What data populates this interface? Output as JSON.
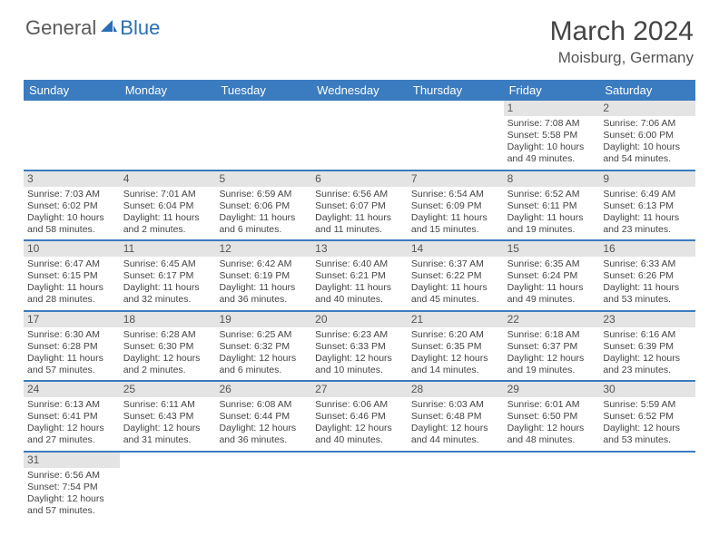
{
  "logo": {
    "general": "General",
    "blue": "Blue"
  },
  "title": "March 2024",
  "location": "Moisburg, Germany",
  "colors": {
    "header_bg": "#3b7bbf",
    "header_text": "#ffffff",
    "daynum_bg": "#e4e4e4",
    "row_border": "#3b7bbf",
    "body_text": "#444444",
    "logo_blue": "#2a6fb5",
    "logo_gray": "#5a5a5a"
  },
  "weekdays": [
    "Sunday",
    "Monday",
    "Tuesday",
    "Wednesday",
    "Thursday",
    "Friday",
    "Saturday"
  ],
  "rows": [
    [
      null,
      null,
      null,
      null,
      null,
      {
        "n": "1",
        "sr": "Sunrise: 7:08 AM",
        "ss": "Sunset: 5:58 PM",
        "dl1": "Daylight: 10 hours",
        "dl2": "and 49 minutes."
      },
      {
        "n": "2",
        "sr": "Sunrise: 7:06 AM",
        "ss": "Sunset: 6:00 PM",
        "dl1": "Daylight: 10 hours",
        "dl2": "and 54 minutes."
      }
    ],
    [
      {
        "n": "3",
        "sr": "Sunrise: 7:03 AM",
        "ss": "Sunset: 6:02 PM",
        "dl1": "Daylight: 10 hours",
        "dl2": "and 58 minutes."
      },
      {
        "n": "4",
        "sr": "Sunrise: 7:01 AM",
        "ss": "Sunset: 6:04 PM",
        "dl1": "Daylight: 11 hours",
        "dl2": "and 2 minutes."
      },
      {
        "n": "5",
        "sr": "Sunrise: 6:59 AM",
        "ss": "Sunset: 6:06 PM",
        "dl1": "Daylight: 11 hours",
        "dl2": "and 6 minutes."
      },
      {
        "n": "6",
        "sr": "Sunrise: 6:56 AM",
        "ss": "Sunset: 6:07 PM",
        "dl1": "Daylight: 11 hours",
        "dl2": "and 11 minutes."
      },
      {
        "n": "7",
        "sr": "Sunrise: 6:54 AM",
        "ss": "Sunset: 6:09 PM",
        "dl1": "Daylight: 11 hours",
        "dl2": "and 15 minutes."
      },
      {
        "n": "8",
        "sr": "Sunrise: 6:52 AM",
        "ss": "Sunset: 6:11 PM",
        "dl1": "Daylight: 11 hours",
        "dl2": "and 19 minutes."
      },
      {
        "n": "9",
        "sr": "Sunrise: 6:49 AM",
        "ss": "Sunset: 6:13 PM",
        "dl1": "Daylight: 11 hours",
        "dl2": "and 23 minutes."
      }
    ],
    [
      {
        "n": "10",
        "sr": "Sunrise: 6:47 AM",
        "ss": "Sunset: 6:15 PM",
        "dl1": "Daylight: 11 hours",
        "dl2": "and 28 minutes."
      },
      {
        "n": "11",
        "sr": "Sunrise: 6:45 AM",
        "ss": "Sunset: 6:17 PM",
        "dl1": "Daylight: 11 hours",
        "dl2": "and 32 minutes."
      },
      {
        "n": "12",
        "sr": "Sunrise: 6:42 AM",
        "ss": "Sunset: 6:19 PM",
        "dl1": "Daylight: 11 hours",
        "dl2": "and 36 minutes."
      },
      {
        "n": "13",
        "sr": "Sunrise: 6:40 AM",
        "ss": "Sunset: 6:21 PM",
        "dl1": "Daylight: 11 hours",
        "dl2": "and 40 minutes."
      },
      {
        "n": "14",
        "sr": "Sunrise: 6:37 AM",
        "ss": "Sunset: 6:22 PM",
        "dl1": "Daylight: 11 hours",
        "dl2": "and 45 minutes."
      },
      {
        "n": "15",
        "sr": "Sunrise: 6:35 AM",
        "ss": "Sunset: 6:24 PM",
        "dl1": "Daylight: 11 hours",
        "dl2": "and 49 minutes."
      },
      {
        "n": "16",
        "sr": "Sunrise: 6:33 AM",
        "ss": "Sunset: 6:26 PM",
        "dl1": "Daylight: 11 hours",
        "dl2": "and 53 minutes."
      }
    ],
    [
      {
        "n": "17",
        "sr": "Sunrise: 6:30 AM",
        "ss": "Sunset: 6:28 PM",
        "dl1": "Daylight: 11 hours",
        "dl2": "and 57 minutes."
      },
      {
        "n": "18",
        "sr": "Sunrise: 6:28 AM",
        "ss": "Sunset: 6:30 PM",
        "dl1": "Daylight: 12 hours",
        "dl2": "and 2 minutes."
      },
      {
        "n": "19",
        "sr": "Sunrise: 6:25 AM",
        "ss": "Sunset: 6:32 PM",
        "dl1": "Daylight: 12 hours",
        "dl2": "and 6 minutes."
      },
      {
        "n": "20",
        "sr": "Sunrise: 6:23 AM",
        "ss": "Sunset: 6:33 PM",
        "dl1": "Daylight: 12 hours",
        "dl2": "and 10 minutes."
      },
      {
        "n": "21",
        "sr": "Sunrise: 6:20 AM",
        "ss": "Sunset: 6:35 PM",
        "dl1": "Daylight: 12 hours",
        "dl2": "and 14 minutes."
      },
      {
        "n": "22",
        "sr": "Sunrise: 6:18 AM",
        "ss": "Sunset: 6:37 PM",
        "dl1": "Daylight: 12 hours",
        "dl2": "and 19 minutes."
      },
      {
        "n": "23",
        "sr": "Sunrise: 6:16 AM",
        "ss": "Sunset: 6:39 PM",
        "dl1": "Daylight: 12 hours",
        "dl2": "and 23 minutes."
      }
    ],
    [
      {
        "n": "24",
        "sr": "Sunrise: 6:13 AM",
        "ss": "Sunset: 6:41 PM",
        "dl1": "Daylight: 12 hours",
        "dl2": "and 27 minutes."
      },
      {
        "n": "25",
        "sr": "Sunrise: 6:11 AM",
        "ss": "Sunset: 6:43 PM",
        "dl1": "Daylight: 12 hours",
        "dl2": "and 31 minutes."
      },
      {
        "n": "26",
        "sr": "Sunrise: 6:08 AM",
        "ss": "Sunset: 6:44 PM",
        "dl1": "Daylight: 12 hours",
        "dl2": "and 36 minutes."
      },
      {
        "n": "27",
        "sr": "Sunrise: 6:06 AM",
        "ss": "Sunset: 6:46 PM",
        "dl1": "Daylight: 12 hours",
        "dl2": "and 40 minutes."
      },
      {
        "n": "28",
        "sr": "Sunrise: 6:03 AM",
        "ss": "Sunset: 6:48 PM",
        "dl1": "Daylight: 12 hours",
        "dl2": "and 44 minutes."
      },
      {
        "n": "29",
        "sr": "Sunrise: 6:01 AM",
        "ss": "Sunset: 6:50 PM",
        "dl1": "Daylight: 12 hours",
        "dl2": "and 48 minutes."
      },
      {
        "n": "30",
        "sr": "Sunrise: 5:59 AM",
        "ss": "Sunset: 6:52 PM",
        "dl1": "Daylight: 12 hours",
        "dl2": "and 53 minutes."
      }
    ],
    [
      {
        "n": "31",
        "sr": "Sunrise: 6:56 AM",
        "ss": "Sunset: 7:54 PM",
        "dl1": "Daylight: 12 hours",
        "dl2": "and 57 minutes."
      },
      null,
      null,
      null,
      null,
      null,
      null
    ]
  ]
}
